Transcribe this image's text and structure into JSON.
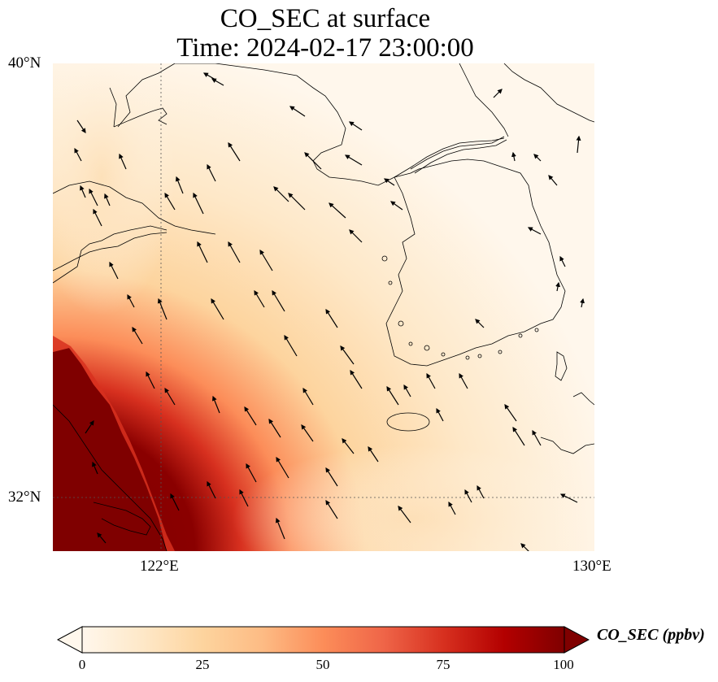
{
  "title": {
    "line1": "CO_SEC at surface",
    "line2": "Time: 2024-02-17 23:00:00"
  },
  "axes": {
    "lat_ticks": [
      "40°N",
      "32°N"
    ],
    "lon_ticks": [
      "122°E",
      "130°E"
    ],
    "lon_range": [
      120,
      130
    ],
    "lat_range": [
      31,
      40
    ],
    "gridlines": "dotted at 122°E and 32°N"
  },
  "colorbar": {
    "label": "CO_SEC (ppbv)",
    "ticks": [
      "0",
      "25",
      "50",
      "75",
      "100"
    ],
    "range": [
      0,
      100
    ],
    "extend": "both",
    "colormap": "OrRd",
    "stops": [
      "#fff7ec",
      "#fee8c8",
      "#fdd49e",
      "#fdbb84",
      "#fc8d59",
      "#ef6548",
      "#d7301f",
      "#b30000",
      "#7f0000"
    ]
  },
  "map": {
    "content": "surface CO_SEC concentration field with wind vectors over the Yellow Sea and Korean Peninsula",
    "high_concentration_region": "southwest corner (Jiangsu coast / Yangtze delta), >100 ppbv",
    "background_level": "near 0-10 ppbv over most of the domain"
  }
}
